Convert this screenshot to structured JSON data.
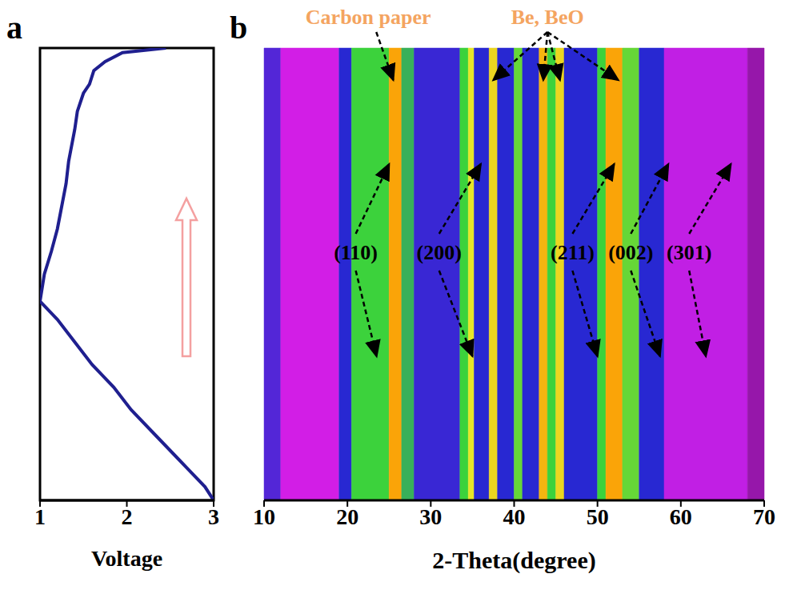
{
  "chart_data": [
    {
      "type": "line",
      "panel": "a",
      "x_label": "Voltage",
      "xlim": [
        1,
        3
      ],
      "xticks": [
        1,
        2,
        3
      ],
      "ylim": [
        0,
        100
      ],
      "tick_labels": "x",
      "color": "#1f1f8f",
      "x": [
        2.45,
        1.95,
        1.75,
        1.62,
        1.57,
        1.5,
        1.43,
        1.4,
        1.33,
        1.3,
        1.25,
        1.2,
        1.13,
        1.05,
        1.0,
        1.2,
        1.4,
        1.6,
        1.85,
        2.05,
        2.3,
        2.55,
        2.75,
        2.9,
        3.0
      ],
      "y": [
        0,
        1,
        3,
        5,
        8,
        10,
        14,
        18,
        25,
        30,
        35,
        40,
        45,
        50,
        56,
        60,
        65,
        70,
        75,
        80,
        85,
        90,
        94,
        97,
        100
      ]
    },
    {
      "type": "heatmap",
      "panel": "b",
      "x_label": "2-Theta(degree)",
      "xlim": [
        10,
        70
      ],
      "xticks": [
        10,
        20,
        30,
        40,
        50,
        60,
        70
      ],
      "ylim": [
        0,
        1
      ],
      "tick_labels": "x",
      "x_edges": [
        10,
        12,
        19,
        20.5,
        25,
        26.5,
        28,
        33.5,
        34.5,
        35.2,
        37,
        38,
        40,
        41,
        43,
        44,
        45,
        46,
        50,
        51,
        53,
        55,
        58,
        68,
        70
      ],
      "intensity": [
        0.25,
        0.1,
        0.3,
        0.55,
        0.95,
        0.5,
        0.28,
        0.55,
        0.75,
        0.3,
        0.8,
        0.3,
        0.6,
        0.3,
        0.9,
        0.55,
        0.8,
        0.3,
        0.55,
        0.95,
        0.6,
        0.3,
        0.12,
        0.05
      ],
      "annotations": [
        {
          "text": "Carbon paper",
          "x": 22.5,
          "targets": [
            25.5
          ],
          "color": "#f4a460"
        },
        {
          "text": "Be, BeO",
          "x": 44,
          "targets": [
            37.5,
            43.5,
            45.5,
            52.5
          ],
          "color": "#f4a460"
        }
      ],
      "peaks": [
        {
          "text": "(110)",
          "x": 21,
          "top": 25,
          "bottom": 23.5
        },
        {
          "text": "(200)",
          "x": 31,
          "top": 36,
          "bottom": 35
        },
        {
          "text": "(211)",
          "x": 47,
          "top": 52,
          "bottom": 50
        },
        {
          "text": "(002)",
          "x": 54,
          "top": 58.5,
          "bottom": 57.5
        },
        {
          "text": "(301)",
          "x": 61,
          "top": 66,
          "bottom": 63
        }
      ]
    }
  ]
}
